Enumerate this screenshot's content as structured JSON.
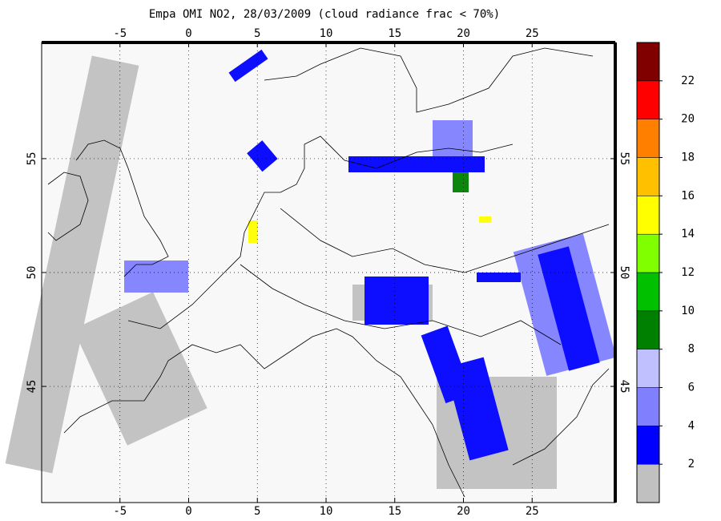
{
  "title": "Empa OMI NO2, 28/03/2009 (cloud radiance frac < 70%)",
  "map": {
    "xlim": [
      -10.7,
      31.05
    ],
    "ylim": [
      39.9,
      60.1
    ],
    "xticks": [
      -5,
      0,
      5,
      10,
      15,
      20,
      25
    ],
    "yticks": [
      45,
      50,
      55
    ]
  },
  "colorbar": {
    "lim": [
      0,
      24
    ],
    "ticks": [
      2,
      4,
      6,
      8,
      10,
      12,
      14,
      16,
      18,
      20,
      22
    ],
    "colors": [
      "#c0c0c0",
      "#0000ff",
      "#8080ff",
      "#c0c0ff",
      "#008000",
      "#00c000",
      "#80ff00",
      "#ffff00",
      "#ffc000",
      "#ff8000",
      "#ff0000",
      "#800000"
    ]
  }
}
